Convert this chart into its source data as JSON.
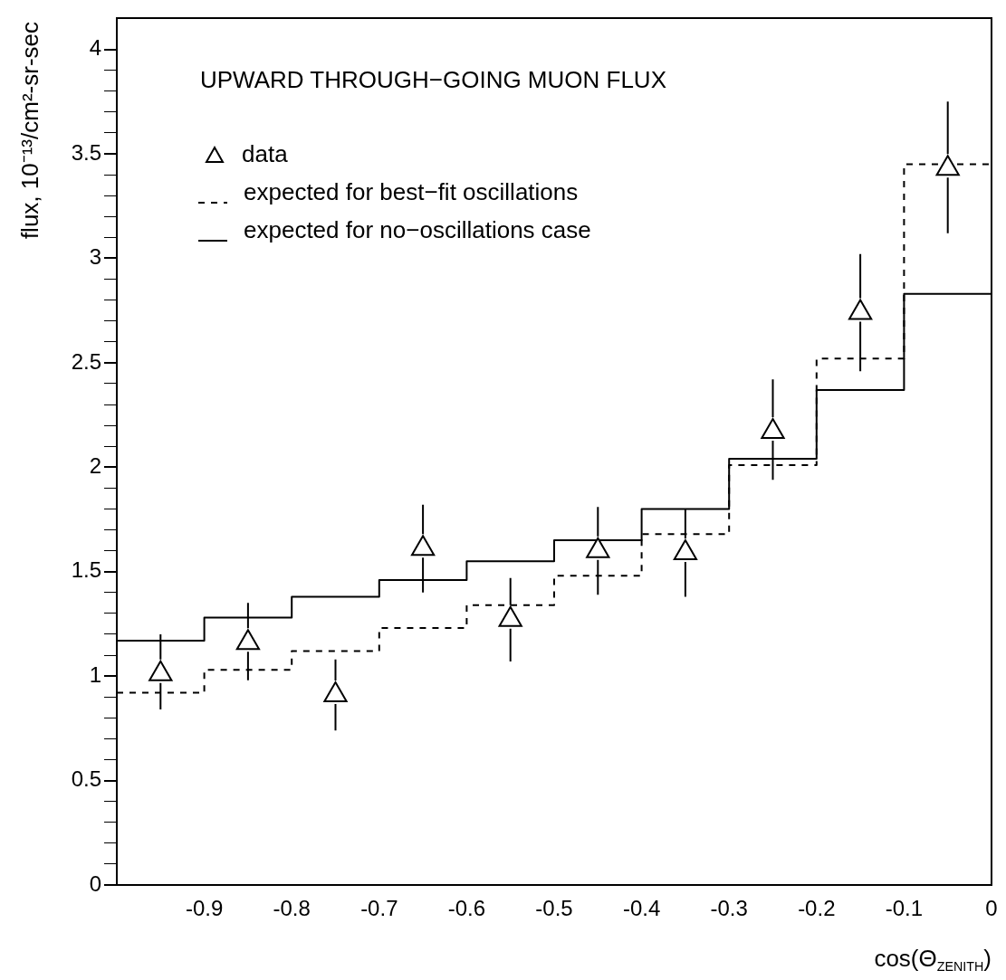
{
  "chart_data": {
    "type": "scatter",
    "title": "UPWARD THROUGH−GOING MUON FLUX",
    "xlabel": "cos(Θ$_{ZENITH}$)",
    "ylabel": "flux, 10⁻¹³/cm²-sr-sec",
    "xlim": [
      -1,
      0
    ],
    "xticks": [
      -0.9,
      -0.8,
      -0.7,
      -0.6,
      -0.5,
      -0.4,
      -0.3,
      -0.2,
      -0.1,
      0
    ],
    "ylim": [
      0,
      4.15
    ],
    "yticks": [
      0,
      {
        "value": 0.1,
        "label": null
      },
      {
        "value": 0.2,
        "label": null
      },
      {
        "value": 0.3,
        "label": null
      },
      {
        "value": 0.4,
        "label": null
      },
      0.5,
      {
        "value": 0.6,
        "label": null
      },
      {
        "value": 0.7,
        "label": null
      },
      {
        "value": 0.8,
        "label": null
      },
      {
        "value": 0.9,
        "label": null
      },
      1,
      {
        "value": 1.1,
        "label": null
      },
      {
        "value": 1.2,
        "label": null
      },
      {
        "value": 1.3,
        "label": null
      },
      {
        "value": 1.4,
        "label": null
      },
      1.5,
      {
        "value": 1.6,
        "label": null
      },
      {
        "value": 1.7,
        "label": null
      },
      {
        "value": 1.8,
        "label": null
      },
      {
        "value": 1.9,
        "label": null
      },
      2,
      {
        "value": 2.1,
        "label": null
      },
      {
        "value": 2.2,
        "label": null
      },
      {
        "value": 2.3,
        "label": null
      },
      {
        "value": 2.4,
        "label": null
      },
      2.5,
      {
        "value": 2.6,
        "label": null
      },
      {
        "value": 2.7,
        "label": null
      },
      {
        "value": 2.8,
        "label": null
      },
      {
        "value": 2.9,
        "label": null
      },
      3,
      {
        "value": 3.1,
        "label": null
      },
      {
        "value": 3.2,
        "label": null
      },
      {
        "value": 3.3,
        "label": null
      },
      {
        "value": 3.4,
        "label": null
      },
      3.5,
      {
        "value": 3.6,
        "label": null
      },
      {
        "value": 3.7,
        "label": null
      },
      {
        "value": 3.8,
        "label": null
      },
      {
        "value": 3.9,
        "label": null
      },
      4
    ],
    "legend": "top left",
    "series": [
      {
        "type": "scatter",
        "name": "data",
        "color": "#000000",
        "marker": "triangle",
        "x": [
          -0.95,
          -0.85,
          -0.75,
          -0.65,
          -0.55,
          -0.45,
          -0.35,
          -0.25,
          -0.15,
          -0.05
        ],
        "values": [
          1.01,
          1.16,
          0.91,
          1.61,
          1.27,
          1.6,
          1.59,
          2.17,
          2.74,
          3.43
        ],
        "errors": [
          [
            0.84,
            1.2
          ],
          [
            0.98,
            1.35
          ],
          [
            0.74,
            1.08
          ],
          [
            1.4,
            1.82
          ],
          [
            1.07,
            1.47
          ],
          [
            1.39,
            1.81
          ],
          [
            1.38,
            1.8
          ],
          [
            1.94,
            2.42
          ],
          [
            2.46,
            3.02
          ],
          [
            3.12,
            3.75
          ]
        ]
      },
      {
        "type": "histogram",
        "name": "expected for best−fit oscillations",
        "color": "#000000",
        "line_style": "dashed",
        "bins": [
          -1,
          -0.9,
          -0.8,
          -0.7,
          -0.6,
          -0.5,
          -0.4,
          -0.3,
          -0.2,
          -0.1,
          0
        ],
        "values": [
          0.92,
          1.03,
          1.12,
          1.23,
          1.34,
          1.48,
          1.68,
          2.01,
          2.52,
          3.45
        ]
      },
      {
        "type": "histogram",
        "name": "expected for no−oscillations case",
        "color": "#000000",
        "line_style": "solid",
        "bins": [
          -1,
          -0.9,
          -0.8,
          -0.7,
          -0.6,
          -0.5,
          -0.4,
          -0.3,
          -0.2,
          -0.1,
          0
        ],
        "values": [
          1.17,
          1.28,
          1.38,
          1.46,
          1.55,
          1.65,
          1.8,
          2.04,
          2.37,
          2.83
        ]
      }
    ]
  }
}
